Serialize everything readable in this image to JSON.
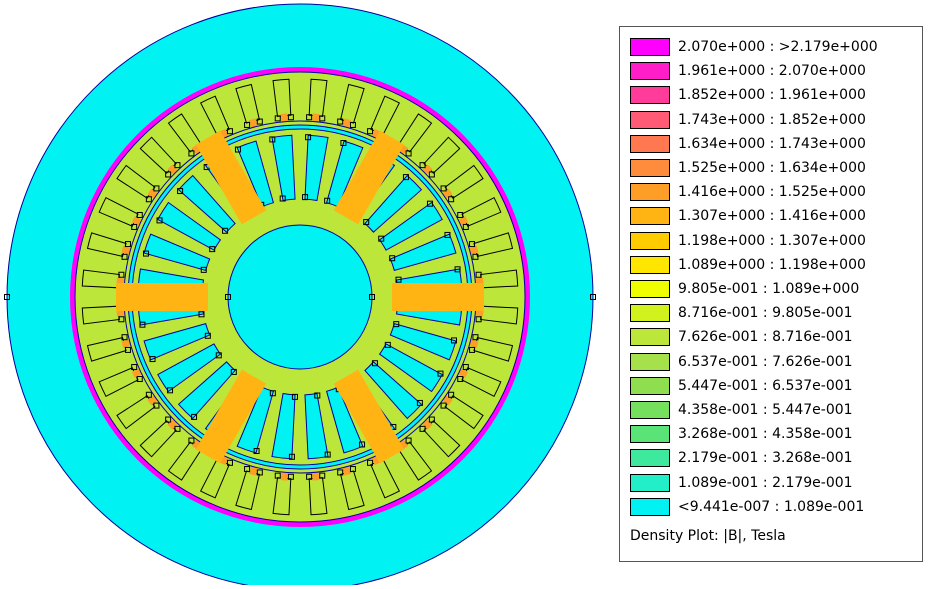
{
  "legend": {
    "entries": [
      {
        "label": "2.070e+000 : >2.179e+000",
        "color": "#ff00ff"
      },
      {
        "label": "1.961e+000 : 2.070e+000",
        "color": "#ff1ec8"
      },
      {
        "label": "1.852e+000 : 1.961e+000",
        "color": "#ff3c9a"
      },
      {
        "label": "1.743e+000 : 1.852e+000",
        "color": "#ff5a76"
      },
      {
        "label": "1.634e+000 : 1.743e+000",
        "color": "#ff7850"
      },
      {
        "label": "1.525e+000 : 1.634e+000",
        "color": "#ff8c3c"
      },
      {
        "label": "1.416e+000 : 1.525e+000",
        "color": "#ff9e26"
      },
      {
        "label": "1.307e+000 : 1.416e+000",
        "color": "#ffb414"
      },
      {
        "label": "1.198e+000 : 1.307e+000",
        "color": "#ffcc00"
      },
      {
        "label": "1.089e+000 : 1.198e+000",
        "color": "#ffe600"
      },
      {
        "label": "9.805e-001 : 1.089e+000",
        "color": "#f0ff00"
      },
      {
        "label": "8.716e-001 : 9.805e-001",
        "color": "#d2f21e"
      },
      {
        "label": "7.626e-001 : 8.716e-001",
        "color": "#bce63a"
      },
      {
        "label": "6.537e-001 : 7.626e-001",
        "color": "#a6e04a"
      },
      {
        "label": "5.447e-001 : 6.537e-001",
        "color": "#8ede50"
      },
      {
        "label": "4.358e-001 : 5.447e-001",
        "color": "#74e05e"
      },
      {
        "label": "3.268e-001 : 4.358e-001",
        "color": "#5ae478"
      },
      {
        "label": "2.179e-001 : 3.268e-001",
        "color": "#3ee89c"
      },
      {
        "label": "1.089e-001 : 2.179e-001",
        "color": "#22eec8"
      },
      {
        "label": "<9.441e-007 : 1.089e-001",
        "color": "#00f2f2"
      }
    ],
    "caption": "Density Plot: |B|, Tesla"
  },
  "colors": {
    "air": "#00f2f2",
    "stator_yoke_outer": "#00f2f2",
    "stator_band": "#ff00ff",
    "slot_fill": "#bce63a",
    "tooth_tip": "#ff9e26",
    "rotor_bar": "#ffb414",
    "rotor_core": "#bce63a",
    "outline": "#0000a0",
    "node": "#000000"
  }
}
